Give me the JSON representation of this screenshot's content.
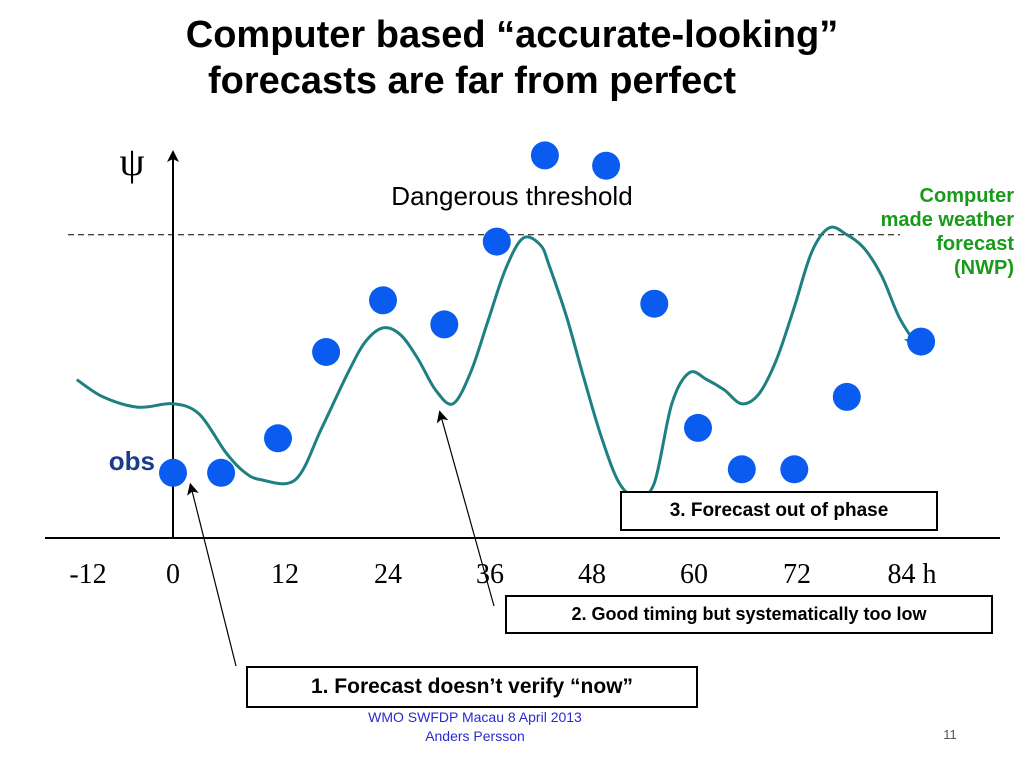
{
  "slide": {
    "title_line1": "Computer based “accurate-looking”",
    "title_line2": "forecasts are far from perfect",
    "footer": "WMO SWFDP Macau 8 April 2013  Anders Persson",
    "page_number": "11"
  },
  "chart_data": {
    "type": "line",
    "ylabel": "ψ",
    "x_ticks": [
      "-12",
      "0",
      "12",
      "24",
      "36",
      "48",
      "60",
      "72",
      "84 h"
    ],
    "threshold_label": "Dangerous threshold",
    "obs_label": "obs",
    "series": [
      {
        "name": "Computer made weather forecast (NWP)",
        "color": "#1e8080"
      }
    ],
    "forecast_curve": {
      "x": [
        -11,
        -8,
        -4,
        0,
        3,
        6,
        8,
        10,
        14,
        17,
        20,
        22,
        24,
        26,
        28,
        30,
        32,
        34,
        36,
        38,
        40,
        42,
        43,
        45,
        47,
        49,
        51,
        53,
        55,
        57,
        59,
        61,
        63,
        65,
        67,
        69,
        71,
        73,
        75,
        77,
        79,
        81,
        83,
        85
      ],
      "y": [
        3.2,
        2.7,
        2.4,
        2.5,
        2.2,
        1.1,
        0.55,
        0.3,
        0.3,
        1.8,
        3.4,
        4.3,
        4.7,
        4.5,
        3.8,
        2.9,
        2.5,
        3.4,
        4.9,
        6.4,
        7.3,
        7.1,
        6.5,
        5.0,
        3.2,
        1.5,
        0.2,
        -0.2,
        0.2,
        2.5,
        3.4,
        3.2,
        2.9,
        2.5,
        2.8,
        3.8,
        5.3,
        6.9,
        7.6,
        7.4,
        7.0,
        6.2,
        5.0,
        4.2
      ],
      "arrow_end": true
    },
    "observations": {
      "color": "#0a5cf0",
      "x": [
        0,
        5.5,
        12,
        17.5,
        24,
        31,
        37,
        42.5,
        49.5,
        55,
        60,
        65,
        71,
        77,
        85.5
      ],
      "y": [
        0.5,
        0.5,
        1.5,
        4.0,
        5.5,
        4.8,
        7.2,
        9.7,
        9.4,
        5.4,
        1.8,
        0.6,
        0.6,
        2.7,
        4.3
      ]
    },
    "threshold_y": 7.4,
    "xlim": [
      -15,
      90
    ],
    "ylim": [
      -2,
      10
    ],
    "callouts": [
      {
        "id": "c1",
        "text": "1. Forecast doesn’t verify “now”",
        "points_to_x": 2,
        "points_to_y": 0.3
      },
      {
        "id": "c2",
        "text": "2. Good timing but systematically too low",
        "points_to_x": 30.5,
        "points_to_y": 2.4
      },
      {
        "id": "c3",
        "text": "3. Forecast out of phase"
      }
    ]
  }
}
